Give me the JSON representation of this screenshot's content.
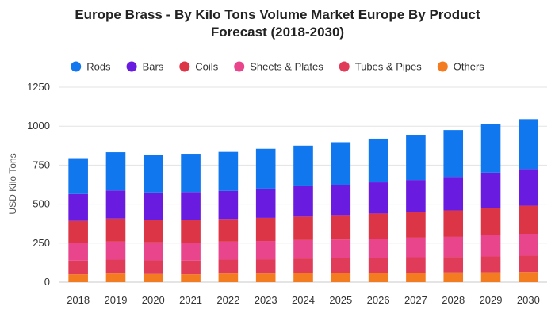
{
  "chart_data": {
    "type": "bar",
    "stacked": true,
    "title_lines": [
      "Europe Brass - By Kilo Tons Volume Market Europe By Product",
      "Forecast (2018-2030)"
    ],
    "ylabel": "USD Kilo Tons",
    "xlabel": "",
    "ylim": [
      0,
      1250
    ],
    "yticks": [
      0,
      250,
      500,
      750,
      1000,
      1250
    ],
    "grid": true,
    "legend_position": "top",
    "categories": [
      "2018",
      "2019",
      "2020",
      "2021",
      "2022",
      "2023",
      "2024",
      "2025",
      "2026",
      "2027",
      "2028",
      "2029",
      "2030"
    ],
    "series": [
      {
        "name": "Others",
        "color": "#f47c20",
        "values": [
          50,
          55,
          52,
          50,
          55,
          55,
          57,
          58,
          58,
          60,
          62,
          63,
          65
        ]
      },
      {
        "name": "Tubes & Pipes",
        "color": "#e03c5a",
        "values": [
          88,
          90,
          88,
          88,
          90,
          92,
          95,
          95,
          97,
          100,
          100,
          102,
          105
        ]
      },
      {
        "name": "Sheets & Plates",
        "color": "#e8458c",
        "values": [
          112,
          115,
          115,
          115,
          115,
          117,
          118,
          120,
          122,
          125,
          128,
          135,
          140
        ]
      },
      {
        "name": "Coils",
        "color": "#dc3545",
        "values": [
          143,
          148,
          145,
          145,
          145,
          148,
          150,
          157,
          163,
          165,
          170,
          175,
          180
        ]
      },
      {
        "name": "Bars",
        "color": "#6a1be0",
        "values": [
          172,
          180,
          175,
          180,
          180,
          188,
          195,
          195,
          200,
          205,
          215,
          227,
          235
        ]
      },
      {
        "name": "Rods",
        "color": "#1177ee",
        "values": [
          230,
          245,
          243,
          245,
          250,
          255,
          260,
          272,
          280,
          290,
          300,
          310,
          320
        ]
      }
    ]
  },
  "legend_order": [
    "Rods",
    "Bars",
    "Coils",
    "Sheets & Plates",
    "Tubes & Pipes",
    "Others"
  ]
}
